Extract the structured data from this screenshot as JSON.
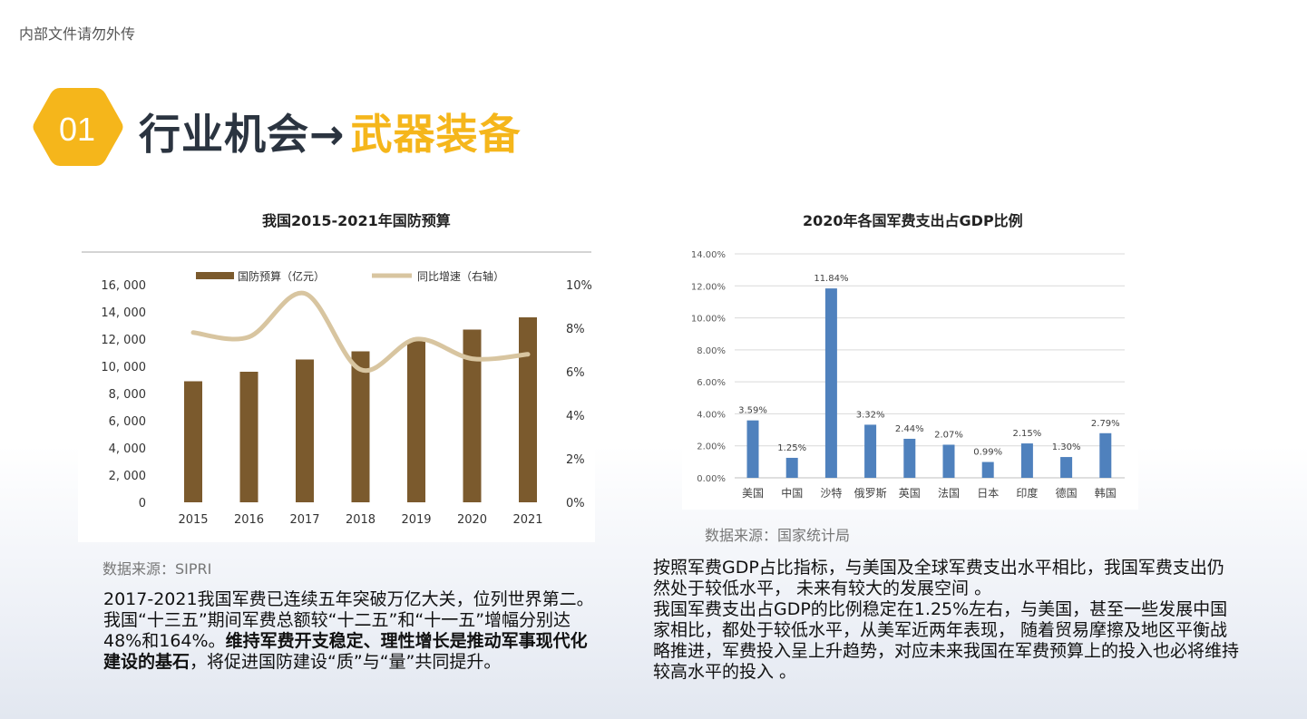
{
  "header": {
    "watermark": "内部文件请勿外传",
    "badge_number": "01",
    "title_main": "行业机会→",
    "title_accent": "武器装备"
  },
  "colors": {
    "accent": "#f5b61b",
    "bar_brown": "#7b5a2d",
    "line_tan": "#d8c5a0",
    "bar_blue": "#4f81bd",
    "title_dark": "#2b3440"
  },
  "left": {
    "chart_title": "我国2015-2021年国防预算",
    "source": "数据来源：SIPRI",
    "para_1": "2017-2021我国军费已连续五年突破万亿大关，位列世界第二。我国“十三五”期间军费总额较“十二五”和“十一五”增幅分别达48%和164%。",
    "para_bold": "维持军费开支稳定、理性增长是推动军事现代化建设的基石",
    "para_2": "，将促进国防建设“质”与“量”共同提升。"
  },
  "right": {
    "chart_title": "2020年各国军费支出占GDP比例",
    "source": "数据来源：国家统计局",
    "para_1": "按照军费GDP占比指标，与美国及全球军费支出水平相比，我国军费支出仍然处于较低水平， 未来有较大的发展空间 。",
    "para_2": "我国军费支出占GDP的比例稳定在1.25%左右，与美国，甚至一些发展中国家相比，都处于较低水平，从美军近两年表现， 随着贸易摩擦及地区平衡战略推进，军费投入呈上升趋势，对应未来我国在军费预算上的投入也必将维持较高水平的投入 。"
  },
  "chart_data": [
    {
      "type": "bar",
      "title": "我国2015-2021年国防预算",
      "categories": [
        "2015",
        "2016",
        "2017",
        "2018",
        "2019",
        "2020",
        "2021"
      ],
      "series": [
        {
          "name": "国防预算（亿元）",
          "type": "bar",
          "axis": "left",
          "values": [
            8900,
            9600,
            10500,
            11100,
            11900,
            12700,
            13600
          ]
        },
        {
          "name": "同比增速（右轴）",
          "type": "line",
          "axis": "right",
          "values": [
            7.8,
            7.6,
            9.6,
            6.1,
            7.5,
            6.6,
            6.8
          ]
        }
      ],
      "ylim": [
        0,
        16000
      ],
      "y_ticks": [
        "0",
        "2, 000",
        "4, 000",
        "6, 000",
        "8, 000",
        "10, 000",
        "12, 000",
        "14, 000",
        "16, 000"
      ],
      "y2lim": [
        0,
        10
      ],
      "y2_ticks": [
        "0%",
        "2%",
        "4%",
        "6%",
        "8%",
        "10%"
      ],
      "legend": "top",
      "grid": false
    },
    {
      "type": "bar",
      "title": "2020年各国军费支出占GDP比例",
      "categories": [
        "美国",
        "中国",
        "沙特",
        "俄罗斯",
        "英国",
        "法国",
        "日本",
        "印度",
        "德国",
        "韩国"
      ],
      "values": [
        3.59,
        1.25,
        11.84,
        3.32,
        2.44,
        2.07,
        0.99,
        2.15,
        1.3,
        2.79
      ],
      "labels": [
        "3.59%",
        "1.25%",
        "11.84%",
        "3.32%",
        "2.44%",
        "2.07%",
        "0.99%",
        "2.15%",
        "1.30%",
        "2.79%"
      ],
      "ylim": [
        0,
        14
      ],
      "y_ticks": [
        "0.00%",
        "2.00%",
        "4.00%",
        "6.00%",
        "8.00%",
        "10.00%",
        "12.00%",
        "14.00%"
      ],
      "grid": true,
      "legend": "none"
    }
  ]
}
